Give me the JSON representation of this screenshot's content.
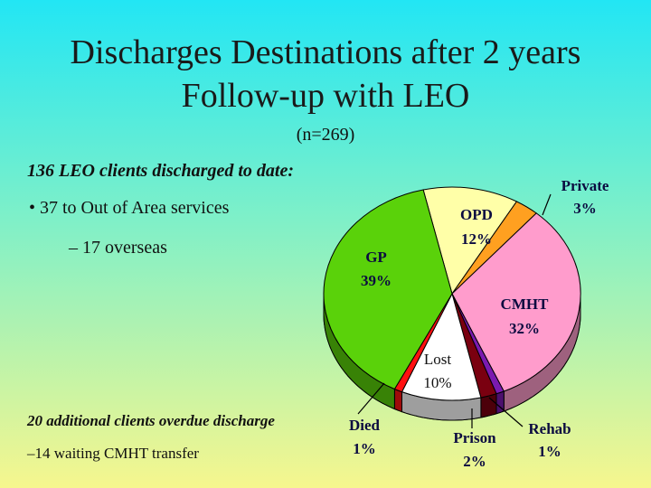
{
  "title_line1": "Discharges Destinations after 2 years",
  "title_line2": "Follow-up with LEO",
  "subtitle": "(n=269)",
  "heading1": "136 LEO clients discharged to date:",
  "bullet1": "• 37 to Out of Area services",
  "subbullet1": "– 17 overseas",
  "heading2": "20 additional clients overdue discharge",
  "subbullet2": "–14 waiting CMHT transfer",
  "chart_data": {
    "type": "pie",
    "title": "",
    "slices": [
      {
        "name": "OPD",
        "value": 12,
        "label": "12%",
        "color": "#ffffa8"
      },
      {
        "name": "Private",
        "value": 3,
        "label": "3%",
        "color": "#ffa020"
      },
      {
        "name": "CMHT",
        "value": 32,
        "label": "32%",
        "color": "#ff9ccc"
      },
      {
        "name": "Rehab",
        "value": 1,
        "label": "1%",
        "color": "#7a1ab0"
      },
      {
        "name": "Prison",
        "value": 2,
        "label": "2%",
        "color": "#7a0010"
      },
      {
        "name": "Lost",
        "value": 10,
        "label": "10%",
        "color": "#ffffff"
      },
      {
        "name": "Died",
        "value": 1,
        "label": "1%",
        "color": "#ff1010"
      },
      {
        "name": "GP",
        "value": 39,
        "label": "39%",
        "color": "#5ad20a"
      }
    ]
  }
}
